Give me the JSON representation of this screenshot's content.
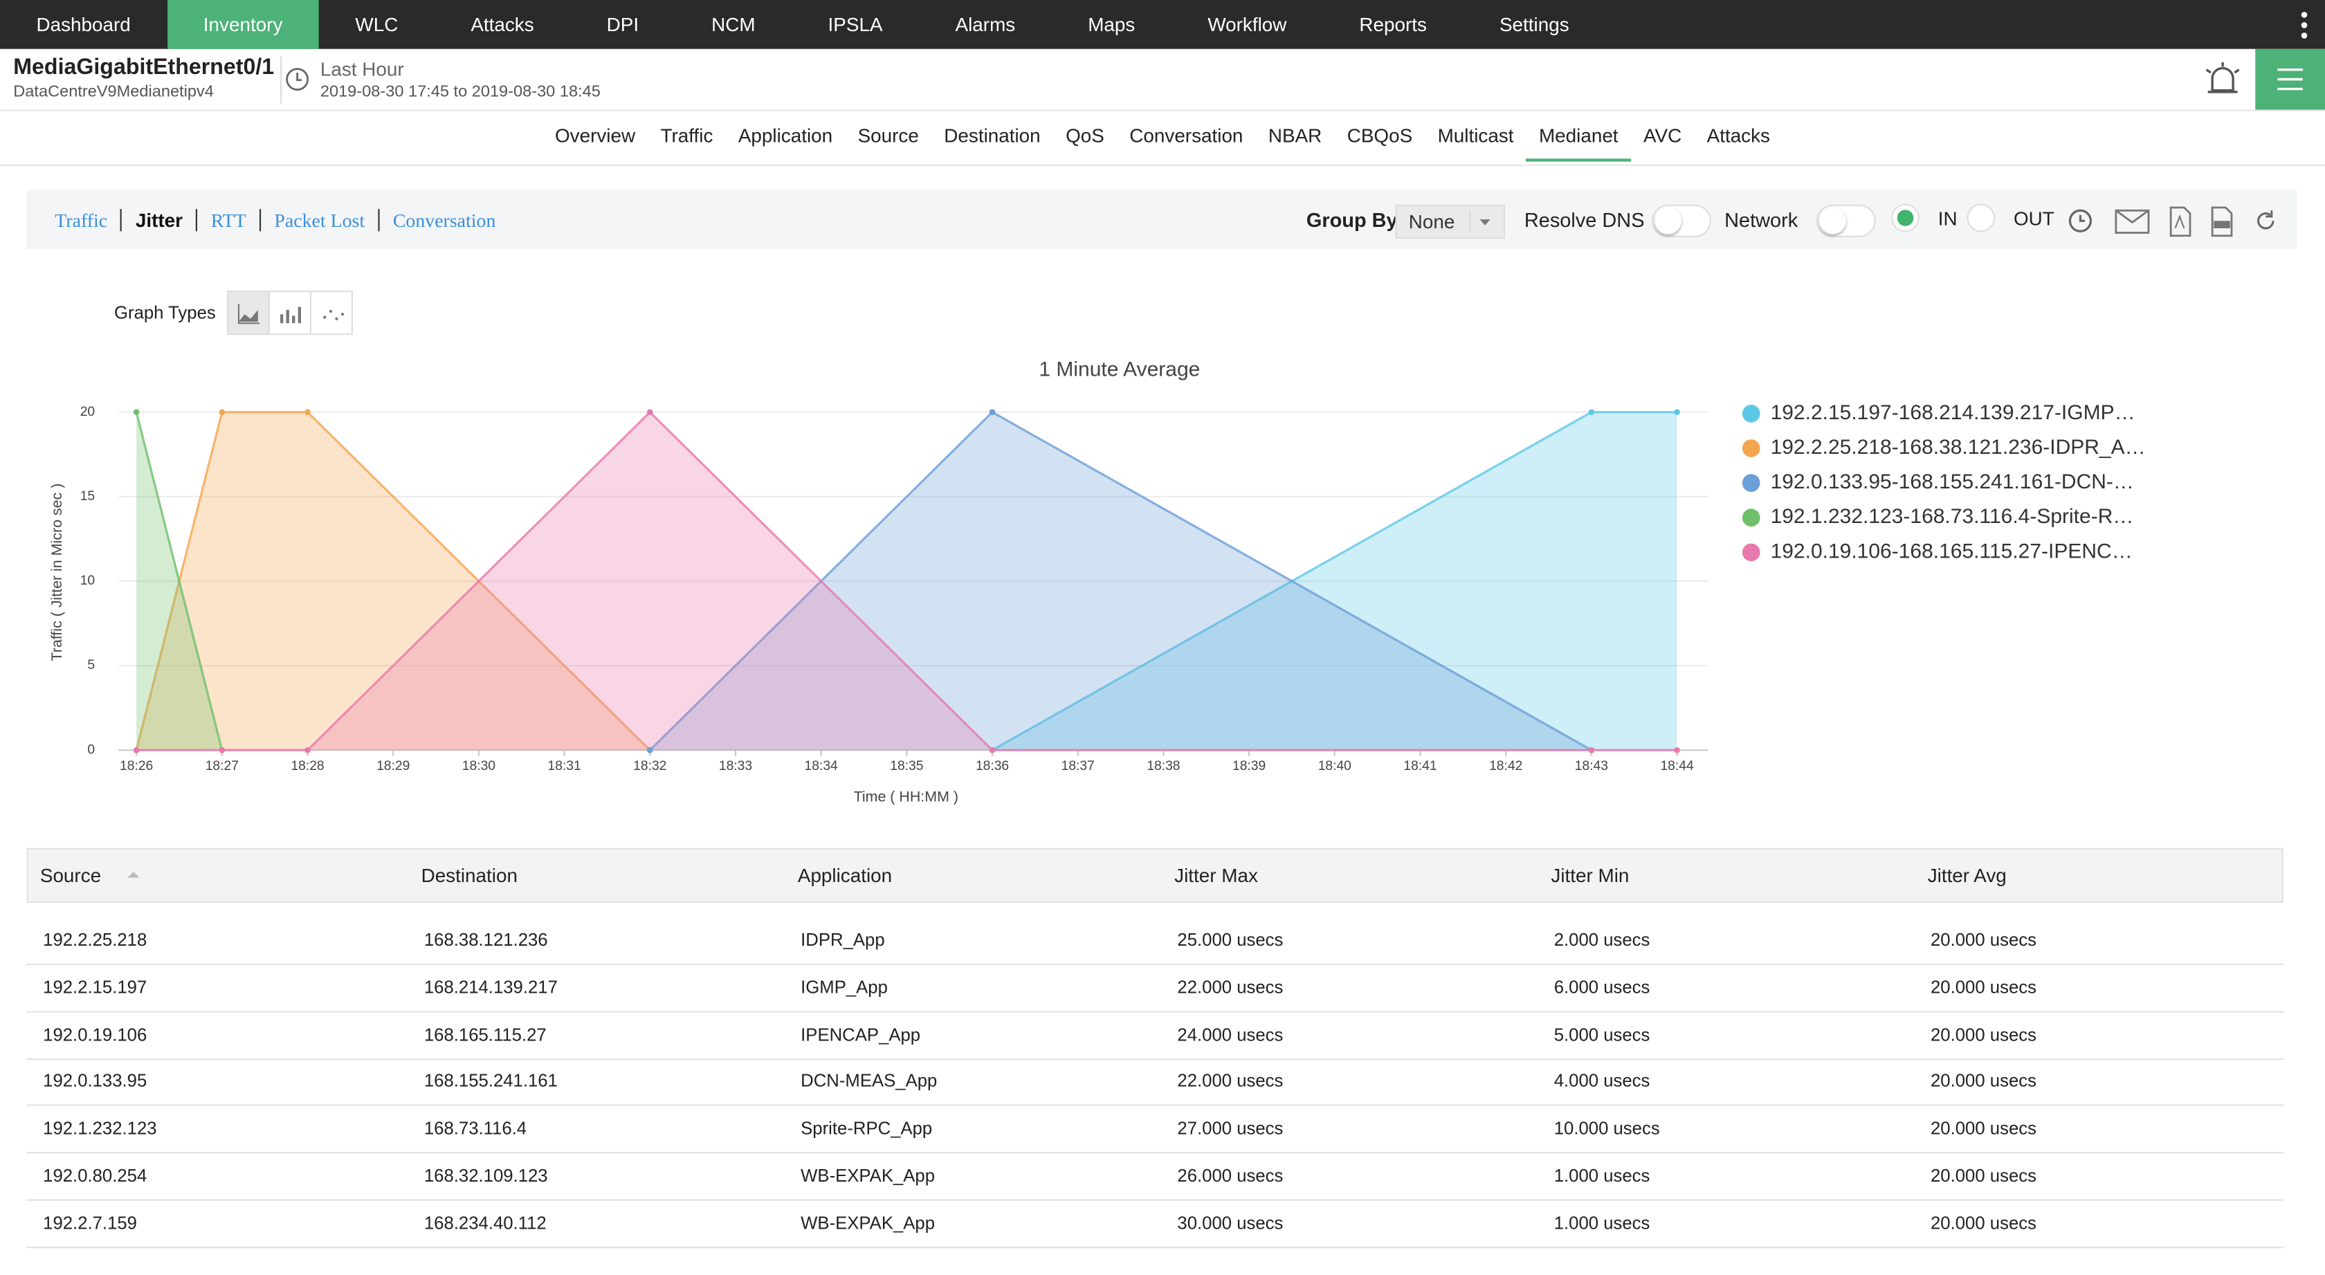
{
  "nav": {
    "items": [
      "Dashboard",
      "Inventory",
      "WLC",
      "Attacks",
      "DPI",
      "NCM",
      "IPSLA",
      "Alarms",
      "Maps",
      "Workflow",
      "Reports",
      "Settings"
    ],
    "active": "Inventory"
  },
  "header": {
    "title": "MediaGigabitEthernet0/1",
    "subtitle": "DataCentreV9Medianetipv4",
    "period": "Last Hour",
    "range": "2019-08-30 17:45 to 2019-08-30 18:45"
  },
  "tabs": {
    "items": [
      "Overview",
      "Traffic",
      "Application",
      "Source",
      "Destination",
      "QoS",
      "Conversation",
      "NBAR",
      "CBQoS",
      "Multicast",
      "Medianet",
      "AVC",
      "Attacks"
    ],
    "active": "Medianet"
  },
  "subtabs": {
    "items": [
      "Traffic",
      "Jitter",
      "RTT",
      "Packet Lost",
      "Conversation"
    ],
    "active": "Jitter"
  },
  "controls": {
    "group_by": "Group By",
    "group_value": "None",
    "resolve_dns": "Resolve DNS",
    "network": "Network",
    "in": "IN",
    "out": "OUT"
  },
  "graph_types": "Graph Types",
  "chart_data": {
    "type": "area",
    "title": "1 Minute Average",
    "x_label": "Time ( HH:MM )",
    "y_label": "Traffic ( Jitter in Micro sec )",
    "categories": [
      "18:26",
      "18:27",
      "18:28",
      "18:29",
      "18:30",
      "18:31",
      "18:32",
      "18:33",
      "18:34",
      "18:35",
      "18:36",
      "18:37",
      "18:38",
      "18:39",
      "18:40",
      "18:41",
      "18:42",
      "18:43",
      "18:44"
    ],
    "ylim": [
      0,
      20
    ],
    "yticks": [
      0,
      5,
      10,
      15,
      20
    ],
    "grid": true,
    "series": [
      {
        "name": "192.2.15.197-168.214.139.217-IGMP…",
        "color": "#5cc8e8",
        "x": [
          "18:36",
          "18:43",
          "18:44"
        ],
        "values": [
          0,
          20,
          20
        ]
      },
      {
        "name": "192.2.25.218-168.38.121.236-IDPR_A…",
        "color": "#f4a54f",
        "x": [
          "18:26",
          "18:27",
          "18:28",
          "18:32"
        ],
        "values": [
          0,
          20,
          20,
          0
        ]
      },
      {
        "name": "192.0.133.95-168.155.241.161-DCN-…",
        "color": "#6a9fd8",
        "x": [
          "18:32",
          "18:36",
          "18:43"
        ],
        "values": [
          0,
          20,
          0
        ]
      },
      {
        "name": "192.1.232.123-168.73.116.4-Sprite-R…",
        "color": "#6fbf6a",
        "x": [
          "18:26",
          "18:27"
        ],
        "values": [
          20,
          0
        ]
      },
      {
        "name": "192.0.19.106-168.165.115.27-IPENC…",
        "color": "#e878ad",
        "x": [
          "18:26",
          "18:27",
          "18:28",
          "18:32",
          "18:36",
          "18:43",
          "18:44"
        ],
        "values": [
          0,
          0,
          0,
          20,
          0,
          0,
          0
        ]
      }
    ]
  },
  "table": {
    "columns": [
      "Source",
      "Destination",
      "Application",
      "Jitter Max",
      "Jitter Min",
      "Jitter Avg"
    ],
    "rows": [
      [
        "192.2.25.218",
        "168.38.121.236",
        "IDPR_App",
        "25.000 usecs",
        "2.000 usecs",
        "20.000 usecs"
      ],
      [
        "192.2.15.197",
        "168.214.139.217",
        "IGMP_App",
        "22.000 usecs",
        "6.000 usecs",
        "20.000 usecs"
      ],
      [
        "192.0.19.106",
        "168.165.115.27",
        "IPENCAP_App",
        "24.000 usecs",
        "5.000 usecs",
        "20.000 usecs"
      ],
      [
        "192.0.133.95",
        "168.155.241.161",
        "DCN-MEAS_App",
        "22.000 usecs",
        "4.000 usecs",
        "20.000 usecs"
      ],
      [
        "192.1.232.123",
        "168.73.116.4",
        "Sprite-RPC_App",
        "27.000 usecs",
        "10.000 usecs",
        "20.000 usecs"
      ],
      [
        "192.0.80.254",
        "168.32.109.123",
        "WB-EXPAK_App",
        "26.000 usecs",
        "1.000 usecs",
        "20.000 usecs"
      ],
      [
        "192.2.7.159",
        "168.234.40.112",
        "WB-EXPAK_App",
        "30.000 usecs",
        "1.000 usecs",
        "20.000 usecs"
      ]
    ]
  }
}
